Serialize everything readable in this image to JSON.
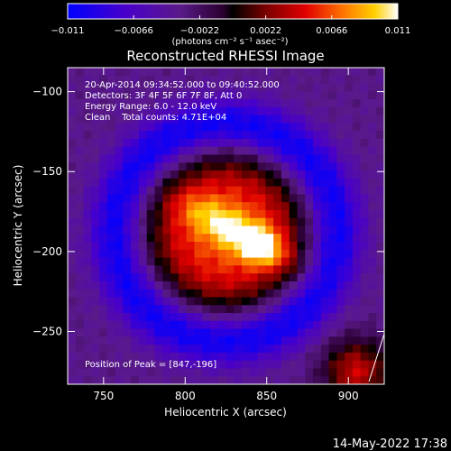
{
  "chart_data": {
    "type": "heatmap",
    "title": "Reconstructed RHESSI Image",
    "xlabel": "Heliocentric X (arcsec)",
    "ylabel": "Heliocentric Y (arcsec)",
    "xlim": [
      728,
      922
    ],
    "ylim": [
      -283,
      -85
    ],
    "x_ticks": [
      750,
      800,
      850,
      900
    ],
    "y_ticks": [
      -100,
      -150,
      -200,
      -250
    ],
    "x_tick_labels": [
      "750",
      "800",
      "850",
      "900"
    ],
    "y_tick_labels": [
      "−100",
      "−150",
      "−200",
      "−250"
    ],
    "colorbar": {
      "range": [
        -0.011,
        0.011
      ],
      "tick_labels": [
        "−0.011",
        "−0.0066",
        "−0.0022",
        "0.0022",
        "0.0066",
        "0.011"
      ],
      "units": "(photons cm⁻² s⁻¹ asec⁻²)",
      "colors": [
        "#0000ff",
        "#4a00c8",
        "#5a1a8a",
        "#2a0030",
        "#000000",
        "#7a0000",
        "#e00000",
        "#ff7a00",
        "#ffd000",
        "#ffffff"
      ]
    },
    "annotations": [
      "20-Apr-2014 09:34:52.000 to 09:40:52.000",
      "Detectors: 3F 4F 5F 6F 7F 8F, Att 0",
      "Energy Range: 6.0 - 12.0 keV",
      "Clean    Total counts: 4.71E+04"
    ],
    "peak_label": "Position of Peak = [847,-196]",
    "peak": [
      847,
      -196
    ],
    "source_center": [
      825,
      -188
    ]
  },
  "footer": {
    "timestamp": "14-May-2022 17:38"
  }
}
